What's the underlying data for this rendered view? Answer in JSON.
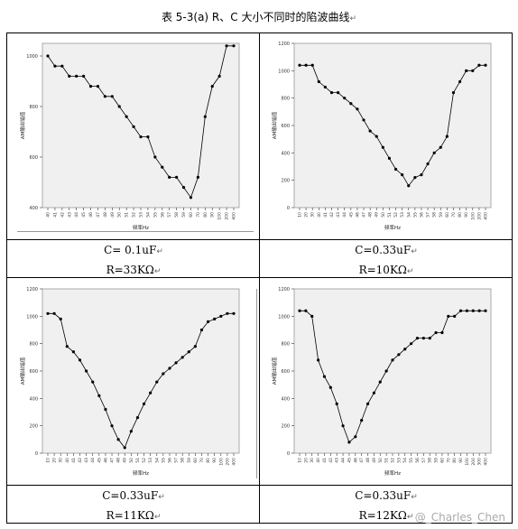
{
  "title": "表 5-3(a) R、C 大小不同时的陷波曲线",
  "return_mark": "↵",
  "watermark": "@_Charles_Chen",
  "cells": [
    {
      "c_label": "C= 0.1uF",
      "r_label": "R=33KΩ"
    },
    {
      "c_label": "C=0.33uF",
      "r_label": "R=10KΩ"
    },
    {
      "c_label": "C=0.33uF",
      "r_label": "R=11KΩ"
    },
    {
      "c_label": "C=0.33uF",
      "r_label": "R=12KΩ"
    }
  ],
  "chart_data": [
    {
      "type": "line",
      "xlabel": "频率Hz",
      "ylabel": "AM输出幅值",
      "ylim": [
        400,
        1050
      ],
      "yticks": [
        400,
        600,
        800,
        1000
      ],
      "x": [
        "40",
        "41",
        "42",
        "43",
        "44",
        "45",
        "46",
        "47",
        "48",
        "49",
        "50",
        "51",
        "52",
        "53",
        "54",
        "55",
        "56",
        "57",
        "58",
        "59",
        "60",
        "70",
        "80",
        "90",
        "100",
        "200",
        "400"
      ],
      "values": [
        1000,
        960,
        960,
        920,
        920,
        920,
        880,
        880,
        840,
        840,
        800,
        760,
        720,
        680,
        680,
        600,
        560,
        520,
        520,
        480,
        440,
        520,
        760,
        880,
        920,
        1040,
        1040
      ]
    },
    {
      "type": "line",
      "xlabel": "频率Hz",
      "ylabel": "AM输出幅值",
      "ylim": [
        0,
        1200
      ],
      "yticks": [
        0,
        200,
        400,
        600,
        800,
        1000,
        1200
      ],
      "x": [
        "10",
        "20",
        "30",
        "40",
        "41",
        "42",
        "43",
        "44",
        "45",
        "46",
        "47",
        "48",
        "49",
        "50",
        "51",
        "52",
        "53",
        "54",
        "55",
        "56",
        "57",
        "58",
        "59",
        "60",
        "70",
        "80",
        "90",
        "100",
        "200",
        "400"
      ],
      "values": [
        1040,
        1040,
        1040,
        920,
        880,
        840,
        840,
        800,
        760,
        720,
        640,
        560,
        520,
        440,
        360,
        280,
        240,
        160,
        220,
        240,
        320,
        400,
        440,
        520,
        840,
        920,
        1000,
        1000,
        1040,
        1040
      ]
    },
    {
      "type": "line",
      "xlabel": "频率Hz",
      "ylabel": "AM输出幅值",
      "ylim": [
        0,
        1200
      ],
      "yticks": [
        0,
        200,
        400,
        600,
        800,
        1000,
        1200
      ],
      "x": [
        "10",
        "20",
        "30",
        "40",
        "41",
        "42",
        "43",
        "44",
        "45",
        "46",
        "47",
        "48",
        "49",
        "50",
        "51",
        "52",
        "53",
        "54",
        "55",
        "56",
        "57",
        "58",
        "59",
        "60",
        "70",
        "80",
        "90",
        "100",
        "200",
        "400"
      ],
      "values": [
        1020,
        1020,
        980,
        780,
        740,
        680,
        600,
        520,
        420,
        320,
        200,
        100,
        40,
        160,
        260,
        360,
        440,
        520,
        580,
        620,
        660,
        700,
        740,
        780,
        900,
        960,
        980,
        1000,
        1020,
        1020
      ]
    },
    {
      "type": "line",
      "xlabel": "频率Hz",
      "ylabel": "AM输出幅值",
      "ylim": [
        0,
        1200
      ],
      "yticks": [
        0,
        200,
        400,
        600,
        800,
        1000,
        1200
      ],
      "x": [
        "10",
        "20",
        "30",
        "40",
        "41",
        "42",
        "43",
        "44",
        "45",
        "46",
        "47",
        "48",
        "49",
        "50",
        "51",
        "52",
        "53",
        "54",
        "55",
        "56",
        "57",
        "58",
        "59",
        "60",
        "70",
        "80",
        "90",
        "100",
        "200",
        "300",
        "400"
      ],
      "values": [
        1040,
        1040,
        1000,
        680,
        560,
        480,
        360,
        200,
        80,
        120,
        240,
        360,
        440,
        520,
        600,
        680,
        720,
        760,
        800,
        840,
        840,
        840,
        880,
        880,
        1000,
        1000,
        1040,
        1040,
        1040,
        1040,
        1040
      ]
    }
  ]
}
